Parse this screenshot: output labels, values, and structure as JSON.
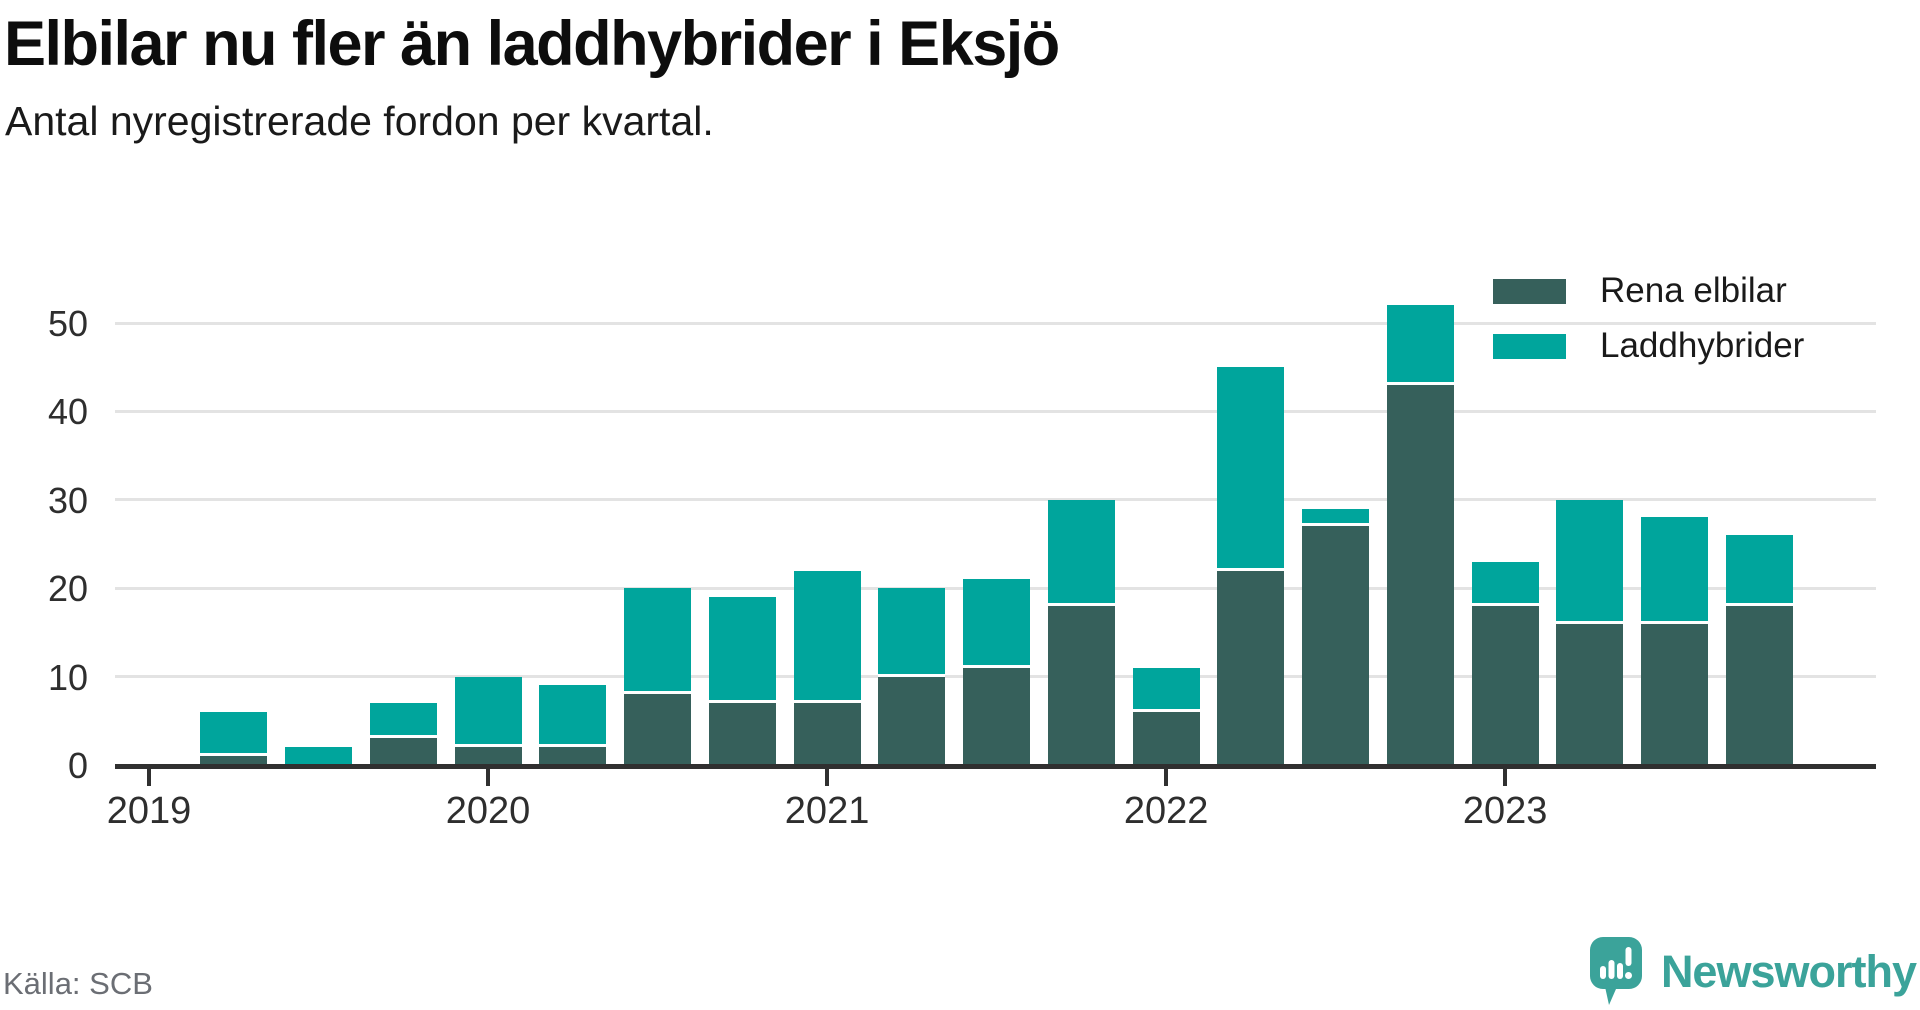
{
  "title": "Elbilar nu fler än laddhybrider i Eksjö",
  "subtitle": "Antal nyregistrerade fordon per kvartal.",
  "source": "Källa: SCB",
  "brand": {
    "name": "Newsworthy",
    "color": "#3ba39a"
  },
  "legend": [
    {
      "label": "Rena elbilar",
      "color": "#36605b"
    },
    {
      "label": "Laddhybrider",
      "color": "#00a59c"
    }
  ],
  "colors": {
    "elbilar": "#36605b",
    "laddhybrider": "#00a59c",
    "axis": "#303030",
    "grid": "#e3e3e3",
    "tick_text": "#2e2e2e",
    "source_text": "#6b6e74"
  },
  "chart_data": {
    "type": "bar",
    "stacked": true,
    "title": "Elbilar nu fler än laddhybrider i Eksjö",
    "subtitle": "Antal nyregistrerade fordon per kvartal.",
    "x": [
      "2019 Q1",
      "2019 Q2",
      "2019 Q3",
      "2019 Q4",
      "2020 Q1",
      "2020 Q2",
      "2020 Q3",
      "2020 Q4",
      "2021 Q1",
      "2021 Q2",
      "2021 Q3",
      "2021 Q4",
      "2022 Q1",
      "2022 Q2",
      "2022 Q3",
      "2022 Q4",
      "2023 Q1",
      "2023 Q2",
      "2023 Q3",
      "2023 Q4"
    ],
    "series": [
      {
        "name": "Rena elbilar",
        "color": "#36605b",
        "values": [
          0,
          1,
          0,
          3,
          2,
          2,
          8,
          7,
          7,
          10,
          11,
          18,
          6,
          22,
          27,
          43,
          18,
          16,
          16,
          18
        ]
      },
      {
        "name": "Laddhybrider",
        "color": "#00a59c",
        "values": [
          0,
          5,
          2,
          4,
          8,
          7,
          12,
          12,
          15,
          10,
          10,
          12,
          5,
          23,
          2,
          9,
          5,
          14,
          12,
          8
        ]
      }
    ],
    "totals": [
      0,
      6,
      2,
      7,
      10,
      9,
      20,
      19,
      22,
      20,
      21,
      30,
      11,
      45,
      29,
      52,
      23,
      30,
      28,
      26
    ],
    "year_ticks": [
      "2019",
      "2020",
      "2021",
      "2022",
      "2023"
    ],
    "y_ticks": [
      0,
      10,
      20,
      30,
      40,
      50
    ],
    "ylim": [
      0,
      55
    ],
    "grid": true,
    "legend_position": "top-right"
  }
}
